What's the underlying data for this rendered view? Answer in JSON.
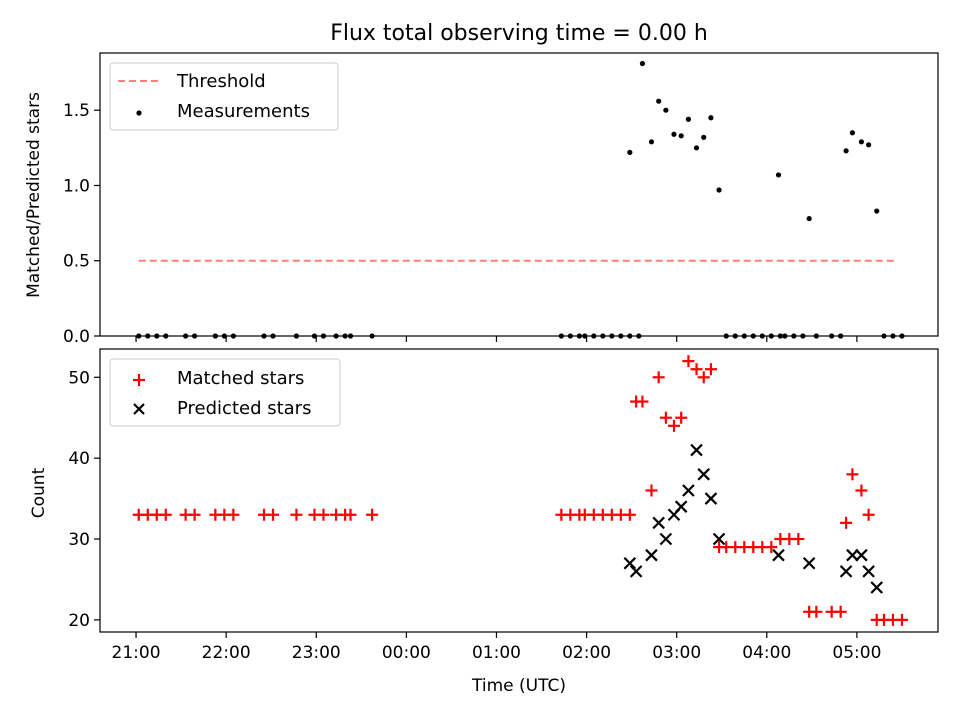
{
  "chart_data": [
    {
      "type": "scatter",
      "title": "Flux total observing time = 0.00 h",
      "xlabel": "",
      "ylabel": "Matched/Predicted stars",
      "xlim": [
        20.6,
        5.9
      ],
      "ylim": [
        0,
        1.88
      ],
      "yticks": [
        0,
        0.5,
        1.0,
        1.5
      ],
      "ytick_labels": [
        "0.0",
        "0.5",
        "1.0",
        "1.5"
      ],
      "legend_position": "top-left",
      "threshold": {
        "name": "Threshold",
        "value": 0.5,
        "x_start": 21.03,
        "x_end": 29.45,
        "color": "#ff7f7f"
      },
      "series": [
        {
          "name": "Measurements",
          "color": "#000000",
          "marker": "dot",
          "x": [
            21.03,
            21.13,
            21.23,
            21.33,
            21.55,
            21.65,
            21.88,
            21.98,
            22.08,
            22.42,
            22.52,
            22.78,
            22.98,
            23.08,
            23.22,
            23.32,
            23.38,
            23.62,
            25.72,
            25.82,
            25.92,
            25.98,
            26.08,
            26.18,
            26.28,
            26.38,
            26.48,
            26.58,
            26.48,
            26.62,
            26.72,
            26.8,
            26.88,
            26.97,
            27.05,
            27.13,
            27.22,
            27.3,
            27.38,
            27.47,
            27.55,
            27.65,
            27.75,
            27.85,
            27.95,
            28.05,
            28.15,
            28.13,
            28.2,
            28.3,
            28.4,
            28.47,
            28.55,
            28.72,
            28.82,
            28.88,
            28.95,
            29.05,
            29.13,
            29.22,
            29.3,
            29.4,
            29.5
          ],
          "y": [
            0,
            0,
            0,
            0,
            0,
            0,
            0,
            0,
            0,
            0,
            0,
            0,
            0,
            0,
            0,
            0,
            0,
            0,
            0,
            0,
            0,
            0,
            0,
            0,
            0,
            0,
            0,
            0,
            1.22,
            1.81,
            1.29,
            1.56,
            1.5,
            1.34,
            1.33,
            1.44,
            1.25,
            1.32,
            1.45,
            0.97,
            0,
            0,
            0,
            0,
            0,
            0,
            0,
            1.07,
            0,
            0,
            0,
            0.78,
            0,
            0,
            0,
            1.23,
            1.35,
            1.29,
            1.27,
            0.83,
            0,
            0,
            0
          ]
        }
      ]
    },
    {
      "type": "scatter",
      "title": "",
      "xlabel": "Time (UTC)",
      "ylabel": "Count",
      "xlim": [
        20.6,
        5.9
      ],
      "ylim": [
        18.5,
        53.5
      ],
      "yticks": [
        20,
        30,
        40,
        50
      ],
      "ytick_labels": [
        "20",
        "30",
        "40",
        "50"
      ],
      "x_ticks": [
        21,
        22,
        23,
        24,
        25,
        26,
        27,
        28,
        29
      ],
      "x_tick_labels": [
        "21:00",
        "22:00",
        "23:00",
        "00:00",
        "01:00",
        "02:00",
        "03:00",
        "04:00",
        "05:00"
      ],
      "legend_position": "top-left",
      "series": [
        {
          "name": "Matched stars",
          "color": "#ff0000",
          "marker": "plus",
          "x": [
            21.03,
            21.13,
            21.23,
            21.33,
            21.55,
            21.65,
            21.88,
            21.98,
            22.08,
            22.42,
            22.52,
            22.78,
            22.98,
            23.08,
            23.22,
            23.32,
            23.38,
            23.62,
            25.72,
            25.82,
            25.92,
            25.98,
            26.08,
            26.18,
            26.28,
            26.38,
            26.48,
            26.55,
            26.62,
            26.72,
            26.8,
            26.88,
            26.97,
            27.05,
            27.13,
            27.22,
            27.3,
            27.38,
            27.47,
            27.55,
            27.65,
            27.75,
            27.85,
            27.95,
            28.05,
            28.15,
            28.25,
            28.35,
            28.47,
            28.55,
            28.72,
            28.82,
            28.88,
            28.95,
            29.05,
            29.13,
            29.22,
            29.3,
            29.4,
            29.5
          ],
          "y": [
            33,
            33,
            33,
            33,
            33,
            33,
            33,
            33,
            33,
            33,
            33,
            33,
            33,
            33,
            33,
            33,
            33,
            33,
            33,
            33,
            33,
            33,
            33,
            33,
            33,
            33,
            33,
            47,
            47,
            36,
            50,
            45,
            44,
            45,
            52,
            51,
            50,
            51,
            29,
            29,
            29,
            29,
            29,
            29,
            29,
            30,
            30,
            30,
            21,
            21,
            21,
            21,
            32,
            38,
            36,
            33,
            20,
            20,
            20,
            20
          ]
        },
        {
          "name": "Predicted stars",
          "color": "#000000",
          "marker": "x",
          "x": [
            26.48,
            26.55,
            26.72,
            26.8,
            26.88,
            26.97,
            27.05,
            27.13,
            27.22,
            27.3,
            27.38,
            27.47,
            28.13,
            28.47,
            28.88,
            28.95,
            29.05,
            29.13,
            29.22
          ],
          "y": [
            27,
            26,
            28,
            32,
            30,
            33,
            34,
            36,
            41,
            38,
            35,
            30,
            28,
            27,
            26,
            28,
            28,
            26,
            24
          ]
        }
      ]
    }
  ]
}
